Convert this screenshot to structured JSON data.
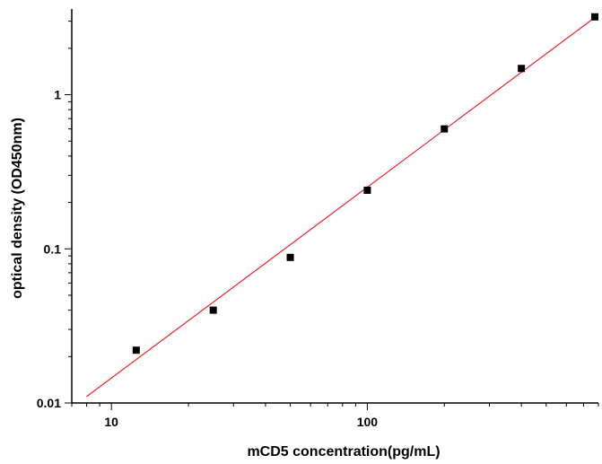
{
  "chart_data": {
    "type": "scatter",
    "title": "",
    "xlabel": "mCD5  concentration(pg/mL)",
    "ylabel": "optical density (OD450nm)",
    "xscale": "log",
    "yscale": "log",
    "xlim": [
      7.0,
      800
    ],
    "ylim": [
      0.01,
      3.6
    ],
    "x_ticks": [
      10,
      100
    ],
    "x_tick_labels": [
      "10",
      "100"
    ],
    "y_ticks": [
      0.01,
      0.1,
      1
    ],
    "y_tick_labels": [
      "0.01",
      "0.1",
      "1"
    ],
    "grid": false,
    "legend": "none",
    "series": [
      {
        "kind": "points",
        "color": "#000000",
        "x": [
          12.5,
          25,
          50,
          100,
          200,
          400,
          800
        ],
        "y": [
          0.022,
          0.04,
          0.088,
          0.24,
          0.6,
          1.48,
          3.2
        ]
      },
      {
        "kind": "fit-line",
        "color": "#ee2222",
        "x": [
          8.0,
          800
        ],
        "y": [
          0.011,
          3.3
        ]
      }
    ]
  }
}
